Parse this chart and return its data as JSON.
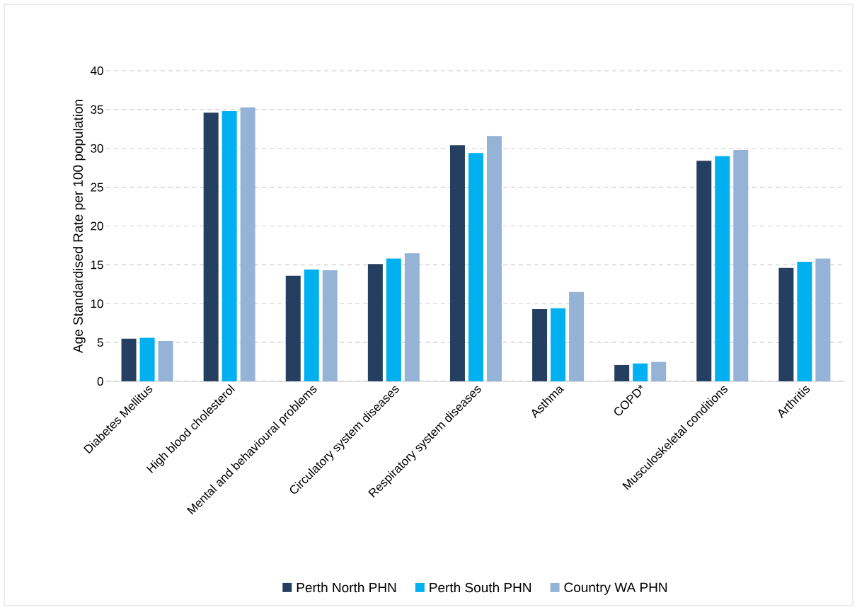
{
  "chart_data": {
    "type": "bar",
    "ylabel": "Age Standardised Rate per 100 population",
    "categories": [
      "Diabetes Mellitus",
      "High blood cholesterol",
      "Mental and behavioural problems",
      "Circulatory system diseases",
      "Respiratory system diseases",
      "Asthma",
      "COPD*",
      "Musculoskeletal conditions",
      "Arthritis"
    ],
    "series": [
      {
        "name": "Perth North PHN",
        "color": "#253f61",
        "values": [
          5.5,
          34.6,
          13.6,
          15.1,
          30.4,
          9.3,
          2.1,
          28.4,
          14.6
        ]
      },
      {
        "name": "Perth South PHN",
        "color": "#00b0f0",
        "values": [
          5.6,
          34.8,
          14.4,
          15.8,
          29.4,
          9.4,
          2.3,
          29.0,
          15.4
        ]
      },
      {
        "name": "Country WA PHN",
        "color": "#95b3d7",
        "values": [
          5.2,
          35.3,
          14.3,
          16.5,
          31.6,
          11.5,
          2.5,
          29.8,
          15.8
        ]
      }
    ],
    "ylim": [
      0,
      40
    ],
    "yticks": [
      0,
      5,
      10,
      15,
      20,
      25,
      30,
      35,
      40
    ],
    "grid": "y",
    "legend": "bottom"
  }
}
